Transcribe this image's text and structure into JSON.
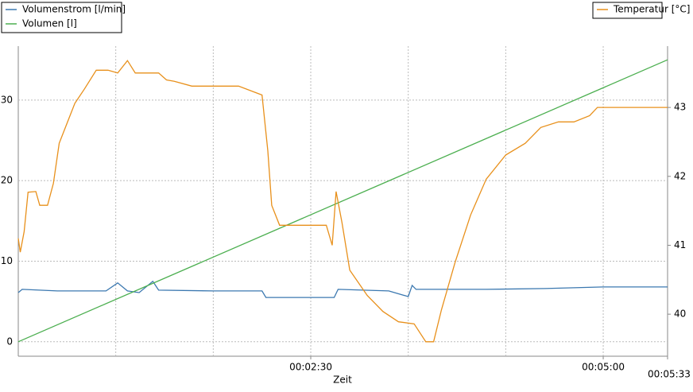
{
  "chart_data": {
    "type": "line",
    "x_label": "Zeit",
    "xlim": [
      0,
      333
    ],
    "xticks": [
      {
        "value": 150,
        "label": "00:02:30"
      },
      {
        "value": 300,
        "label": "00:05:00"
      },
      {
        "value": 333,
        "label": "00:05:33"
      }
    ],
    "xgrid": [
      50,
      100,
      150,
      200,
      250,
      300
    ],
    "ylim": [
      -1.8,
      36.7
    ],
    "yticks": [
      0,
      10,
      20,
      30
    ],
    "y2lim": [
      39.39,
      43.89
    ],
    "y2ticks": [
      40,
      41,
      42,
      43
    ],
    "grid": true,
    "series": [
      {
        "name": "Volumenstrom [l/min]",
        "color": "#3b78b0",
        "x": [
          0,
          2,
          20,
          45,
          51,
          56,
          62,
          69,
          72,
          100,
          125,
          127,
          150,
          162,
          164,
          190,
          200,
          202,
          204,
          240,
          270,
          300,
          333
        ],
        "values": [
          6.1,
          6.5,
          6.3,
          6.3,
          7.3,
          6.3,
          6.1,
          7.5,
          6.4,
          6.3,
          6.3,
          5.5,
          5.5,
          5.5,
          6.5,
          6.3,
          5.6,
          7.0,
          6.5,
          6.5,
          6.6,
          6.8,
          6.8
        ]
      },
      {
        "name": "Volumen [l]",
        "color": "#4caf50",
        "x": [
          0,
          333
        ],
        "values": [
          0,
          35
        ]
      },
      {
        "name": "Temperatur [°C]",
        "color": "#e8901b",
        "axis": "y2",
        "x": [
          0,
          1,
          3,
          5,
          9,
          11,
          15,
          18,
          21,
          25,
          29,
          34,
          40,
          46,
          51,
          56,
          60,
          72,
          76,
          80,
          89,
          113,
          125,
          128,
          130,
          134,
          138,
          144,
          158,
          161,
          163,
          166,
          170,
          179,
          187,
          195,
          203,
          209,
          213,
          217,
          224,
          232,
          240,
          250,
          260,
          268,
          277,
          285,
          293,
          295,
          297,
          333
        ],
        "values": [
          41.1,
          40.9,
          41.2,
          41.77,
          41.78,
          41.58,
          41.58,
          41.9,
          42.48,
          42.77,
          43.06,
          43.27,
          43.54,
          43.54,
          43.5,
          43.68,
          43.5,
          43.5,
          43.4,
          43.38,
          43.31,
          43.31,
          43.18,
          42.37,
          41.58,
          41.29,
          41.29,
          41.29,
          41.29,
          41.0,
          41.78,
          41.33,
          40.64,
          40.27,
          40.04,
          39.89,
          39.86,
          39.6,
          39.6,
          40.06,
          40.75,
          41.44,
          41.96,
          42.31,
          42.48,
          42.71,
          42.79,
          42.79,
          42.88,
          42.94,
          43.0,
          43.0
        ]
      }
    ]
  }
}
